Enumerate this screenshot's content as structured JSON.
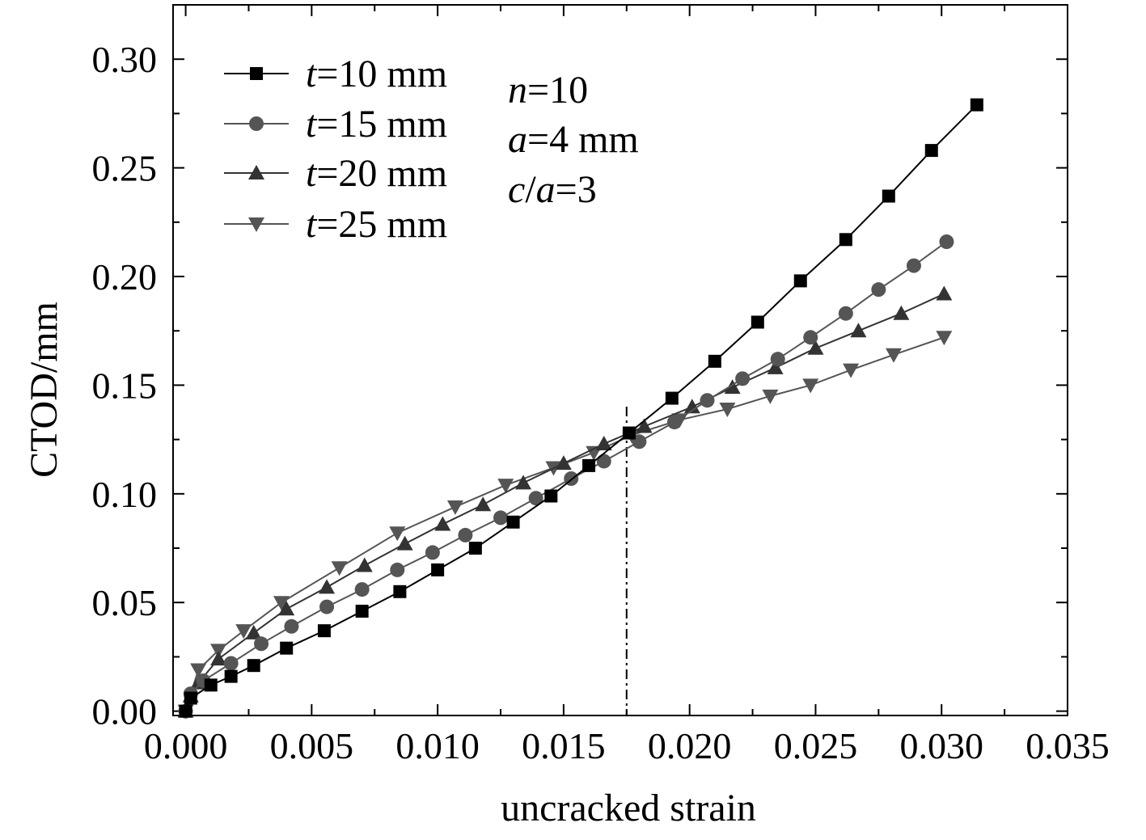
{
  "chart_data": {
    "type": "line",
    "xlabel": "uncracked strain",
    "ylabel": "CTOD/mm",
    "xlim": [
      -0.0005,
      0.035
    ],
    "ylim": [
      -0.002,
      0.325
    ],
    "xticks": [
      "0.000",
      "0.005",
      "0.010",
      "0.015",
      "0.020",
      "0.025",
      "0.030",
      "0.035"
    ],
    "yticks": [
      "0.00",
      "0.05",
      "0.10",
      "0.15",
      "0.20",
      "0.25",
      "0.30"
    ],
    "grid": false,
    "legend_position": "top-left",
    "reference_line": {
      "x": 0.0175,
      "style": "dash-dot"
    },
    "annotations": [
      {
        "var": "n",
        "rest": "=10"
      },
      {
        "var": "a",
        "rest": "=4 mm"
      },
      {
        "var": "c",
        "mid": "/",
        "var2": "a",
        "rest": "=3"
      }
    ],
    "series": [
      {
        "name_var": "t",
        "name_rest": "=10 mm",
        "marker": "square",
        "color": "#000000",
        "x": [
          0,
          0.0002,
          0.001,
          0.0018,
          0.0027,
          0.004,
          0.0055,
          0.007,
          0.0085,
          0.01,
          0.0115,
          0.013,
          0.0145,
          0.016,
          0.0176,
          0.0193,
          0.021,
          0.0227,
          0.0244,
          0.0262,
          0.0279,
          0.0296,
          0.0314
        ],
        "y": [
          0,
          0.006,
          0.012,
          0.016,
          0.021,
          0.029,
          0.037,
          0.046,
          0.055,
          0.065,
          0.075,
          0.087,
          0.099,
          0.113,
          0.128,
          0.144,
          0.161,
          0.179,
          0.198,
          0.217,
          0.237,
          0.258,
          0.279
        ]
      },
      {
        "name_var": "t",
        "name_rest": "=15 mm",
        "marker": "circle",
        "color": "#555555",
        "x": [
          0,
          0.0002,
          0.0007,
          0.0018,
          0.003,
          0.0042,
          0.0056,
          0.007,
          0.0084,
          0.0098,
          0.0111,
          0.0125,
          0.0139,
          0.0153,
          0.0166,
          0.018,
          0.0194,
          0.0207,
          0.0221,
          0.0235,
          0.0248,
          0.0262,
          0.0275,
          0.0289,
          0.0302
        ],
        "y": [
          0,
          0.008,
          0.014,
          0.022,
          0.031,
          0.039,
          0.048,
          0.056,
          0.065,
          0.073,
          0.081,
          0.089,
          0.098,
          0.107,
          0.115,
          0.124,
          0.133,
          0.143,
          0.153,
          0.162,
          0.172,
          0.183,
          0.194,
          0.205,
          0.216
        ]
      },
      {
        "name_var": "t",
        "name_rest": "=20 mm",
        "marker": "triangle-up",
        "color": "#333333",
        "x": [
          0,
          0.0002,
          0.0005,
          0.0013,
          0.0027,
          0.004,
          0.0056,
          0.0071,
          0.0087,
          0.0102,
          0.0118,
          0.0134,
          0.015,
          0.0166,
          0.0182,
          0.0201,
          0.0217,
          0.0234,
          0.025,
          0.0267,
          0.0284,
          0.0301
        ],
        "y": [
          0,
          0.007,
          0.013,
          0.024,
          0.036,
          0.047,
          0.057,
          0.067,
          0.077,
          0.086,
          0.095,
          0.105,
          0.114,
          0.123,
          0.131,
          0.14,
          0.149,
          0.158,
          0.167,
          0.175,
          0.183,
          0.192
        ]
      },
      {
        "name_var": "t",
        "name_rest": "=25 mm",
        "marker": "triangle-down",
        "color": "#555555",
        "x": [
          0,
          0.0005,
          0.0013,
          0.0023,
          0.0038,
          0.0061,
          0.0084,
          0.0107,
          0.0127,
          0.0146,
          0.0162,
          0.0177,
          0.0196,
          0.0215,
          0.0232,
          0.0248,
          0.0264,
          0.0281,
          0.0301
        ],
        "y": [
          0,
          0.019,
          0.028,
          0.037,
          0.05,
          0.066,
          0.082,
          0.094,
          0.104,
          0.112,
          0.119,
          0.127,
          0.134,
          0.139,
          0.145,
          0.15,
          0.157,
          0.164,
          0.172
        ]
      }
    ]
  }
}
